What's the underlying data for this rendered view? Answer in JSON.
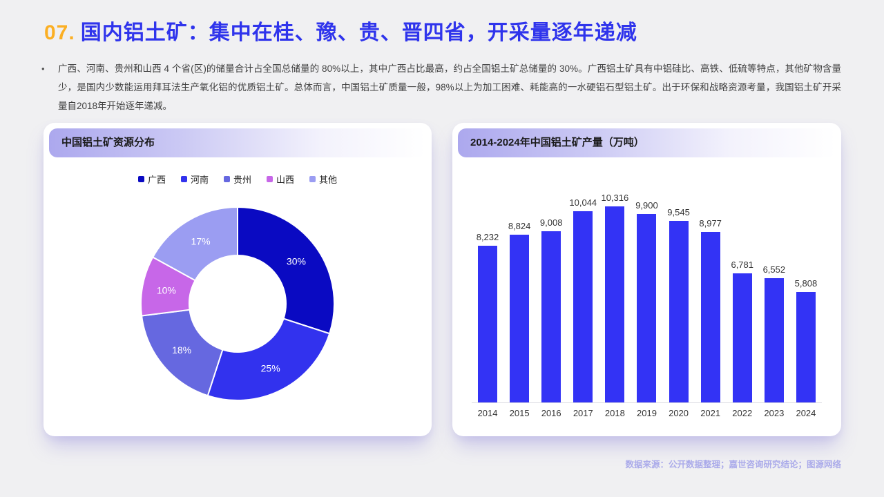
{
  "page": {
    "title_number": "07.",
    "title_text": "国内铝土矿：集中在桂、豫、贵、晋四省，开采量逐年递减",
    "bullet": "•",
    "paragraph": "广西、河南、贵州和山西 4 个省(区)的储量合计占全国总储量的 80%以上，其中广西占比最高，约占全国铝土矿总储量的 30%。广西铝土矿具有中铝硅比、高铁、低硫等特点，其他矿物含量少，是国内少数能运用拜耳法生产氧化铝的优质铝土矿。总体而言，中国铝土矿质量一般，98%以上为加工困难、耗能高的一水硬铝石型铝土矿。出于环保和战略资源考量，我国铝土矿开采量自2018年开始逐年递减。",
    "source": "数据来源：公开数据整理；嘉世咨询研究结论；图源网络"
  },
  "colors": {
    "page_bg": "#F0F0F2",
    "title_number": "#FBAF24",
    "title_text": "#2F34EC",
    "header_gradient_start": "#ACA8EE",
    "bar_blue": "#3333F5",
    "source_text": "#ABABEA",
    "body_text": "#404040"
  },
  "chart_data": [
    {
      "type": "pie",
      "donut": true,
      "title": "中国铝土矿资源分布",
      "labels": [
        "广西",
        "河南",
        "贵州",
        "山西",
        "其他"
      ],
      "values": [
        30,
        25,
        18,
        10,
        17
      ],
      "value_labels": [
        "30%",
        "25%",
        "18%",
        "10%",
        "17%"
      ],
      "unit": "%",
      "colors": [
        "#0A0AC2",
        "#3232EE",
        "#6668E0",
        "#C767E8",
        "#9B9DF2"
      ],
      "start_angle": "top",
      "direction": "clockwise",
      "legend_position": "top"
    },
    {
      "type": "bar",
      "title": "2014-2024年中国铝土矿产量（万吨）",
      "categories": [
        "2014",
        "2015",
        "2016",
        "2017",
        "2018",
        "2019",
        "2020",
        "2021",
        "2022",
        "2023",
        "2024"
      ],
      "values": [
        8232,
        8824,
        9008,
        10044,
        10316,
        9900,
        9545,
        8977,
        6781,
        6552,
        5808
      ],
      "value_labels": [
        "8,232",
        "8,824",
        "9,008",
        "10,044",
        "10,316",
        "9,900",
        "9,545",
        "8,977",
        "6,781",
        "6,552",
        "5,808"
      ],
      "bar_color": "#3333F5",
      "xlabel": "",
      "ylabel": "万吨",
      "ylim": [
        0,
        10316
      ],
      "grid": false,
      "legend_position": "none"
    }
  ]
}
